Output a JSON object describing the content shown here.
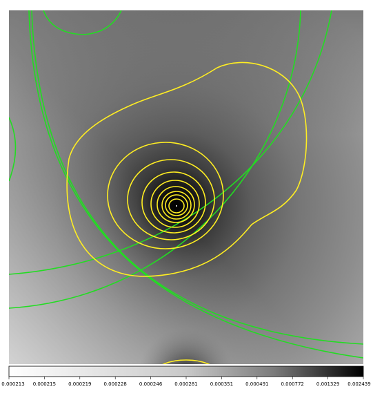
{
  "colorbar": {
    "scale_type": "grayscale",
    "color_low": "#ffffff",
    "color_high": "#000000",
    "tick_labels": [
      "0.000213",
      "0.000215",
      "0.000219",
      "0.000228",
      "0.000246",
      "0.000281",
      "0.000351",
      "0.000491",
      "0.000772",
      "0.001329",
      "0.002439"
    ]
  },
  "contour_colors": {
    "green": "#22dd22",
    "yellow": "#ffee22"
  }
}
